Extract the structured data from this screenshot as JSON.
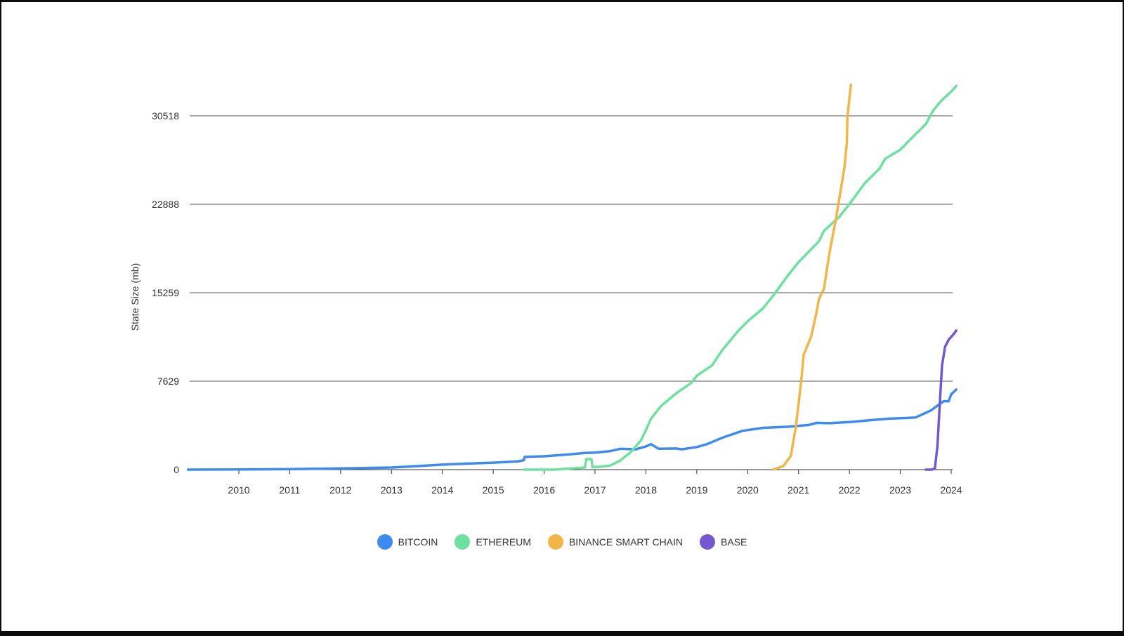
{
  "chart_data": {
    "type": "line",
    "title": "",
    "xlabel": "",
    "ylabel": "State Size (mb)",
    "x_ticks": [
      "2010",
      "2011",
      "2012",
      "2013",
      "2014",
      "2015",
      "2016",
      "2017",
      "2018",
      "2019",
      "2020",
      "2021",
      "2022",
      "2023",
      "2024"
    ],
    "y_ticks": [
      "0",
      "7629",
      "15259",
      "22888",
      "30518"
    ],
    "xlim": [
      2009.0,
      2024.0
    ],
    "ylim": [
      0,
      30518
    ],
    "grid": true,
    "legend_position": "bottom",
    "series": [
      {
        "name": "BITCOIN",
        "color": "#3d8bf0",
        "points": [
          [
            2009.0,
            0
          ],
          [
            2010.0,
            10
          ],
          [
            2011.0,
            40
          ],
          [
            2012.0,
            100
          ],
          [
            2013.0,
            180
          ],
          [
            2013.5,
            300
          ],
          [
            2014.0,
            430
          ],
          [
            2014.5,
            520
          ],
          [
            2015.0,
            600
          ],
          [
            2015.5,
            720
          ],
          [
            2015.6,
            820
          ],
          [
            2015.62,
            1100
          ],
          [
            2016.0,
            1150
          ],
          [
            2016.5,
            1320
          ],
          [
            2016.8,
            1440
          ],
          [
            2017.0,
            1470
          ],
          [
            2017.3,
            1600
          ],
          [
            2017.5,
            1800
          ],
          [
            2017.8,
            1750
          ],
          [
            2018.0,
            2000
          ],
          [
            2018.1,
            2200
          ],
          [
            2018.25,
            1800
          ],
          [
            2018.6,
            1820
          ],
          [
            2018.7,
            1750
          ],
          [
            2019.0,
            1950
          ],
          [
            2019.2,
            2200
          ],
          [
            2019.5,
            2750
          ],
          [
            2019.9,
            3350
          ],
          [
            2020.3,
            3600
          ],
          [
            2020.8,
            3700
          ],
          [
            2021.2,
            3850
          ],
          [
            2021.35,
            4030
          ],
          [
            2021.6,
            4000
          ],
          [
            2022.0,
            4100
          ],
          [
            2022.5,
            4300
          ],
          [
            2022.8,
            4400
          ],
          [
            2023.1,
            4450
          ],
          [
            2023.3,
            4500
          ],
          [
            2023.6,
            5100
          ],
          [
            2023.85,
            5900
          ],
          [
            2023.95,
            5900
          ],
          [
            2024.0,
            6500
          ],
          [
            2024.1,
            6900
          ]
        ]
      },
      {
        "name": "ETHEREUM",
        "color": "#6ee0a0",
        "points": [
          [
            2015.6,
            0
          ],
          [
            2016.2,
            0
          ],
          [
            2016.7,
            150
          ],
          [
            2016.8,
            180
          ],
          [
            2016.83,
            900
          ],
          [
            2016.93,
            900
          ],
          [
            2016.95,
            220
          ],
          [
            2017.1,
            250
          ],
          [
            2017.3,
            350
          ],
          [
            2017.5,
            800
          ],
          [
            2017.7,
            1500
          ],
          [
            2017.9,
            2500
          ],
          [
            2018.0,
            3400
          ],
          [
            2018.1,
            4400
          ],
          [
            2018.3,
            5500
          ],
          [
            2018.6,
            6600
          ],
          [
            2018.9,
            7500
          ],
          [
            2019.0,
            8100
          ],
          [
            2019.3,
            9000
          ],
          [
            2019.5,
            10300
          ],
          [
            2019.8,
            11900
          ],
          [
            2020.0,
            12800
          ],
          [
            2020.3,
            13900
          ],
          [
            2020.5,
            15000
          ],
          [
            2020.8,
            16800
          ],
          [
            2021.0,
            17900
          ],
          [
            2021.4,
            19700
          ],
          [
            2021.5,
            20600
          ],
          [
            2021.8,
            21800
          ],
          [
            2022.0,
            22900
          ],
          [
            2022.3,
            24700
          ],
          [
            2022.6,
            26000
          ],
          [
            2022.7,
            26800
          ],
          [
            2023.0,
            27600
          ],
          [
            2023.2,
            28500
          ],
          [
            2023.5,
            29800
          ],
          [
            2023.65,
            31000
          ],
          [
            2023.8,
            31800
          ],
          [
            2024.0,
            32600
          ],
          [
            2024.1,
            33100
          ]
        ]
      },
      {
        "name": "BINANCE SMART CHAIN",
        "color": "#f2b54a",
        "points": [
          [
            2020.5,
            0
          ],
          [
            2020.7,
            300
          ],
          [
            2020.85,
            1200
          ],
          [
            2020.95,
            3800
          ],
          [
            2021.05,
            7500
          ],
          [
            2021.1,
            9900
          ],
          [
            2021.25,
            11500
          ],
          [
            2021.35,
            13500
          ],
          [
            2021.4,
            14700
          ],
          [
            2021.5,
            15600
          ],
          [
            2021.6,
            18500
          ],
          [
            2021.75,
            22000
          ],
          [
            2021.9,
            26000
          ],
          [
            2021.95,
            28200
          ],
          [
            2021.96,
            30300
          ],
          [
            2022.0,
            32000
          ],
          [
            2022.03,
            33200
          ]
        ]
      },
      {
        "name": "BASE",
        "color": "#7458cf",
        "points": [
          [
            2023.5,
            0
          ],
          [
            2023.62,
            0
          ],
          [
            2023.68,
            100
          ],
          [
            2023.73,
            2000
          ],
          [
            2023.78,
            6000
          ],
          [
            2023.82,
            9000
          ],
          [
            2023.88,
            10600
          ],
          [
            2023.95,
            11200
          ],
          [
            2024.05,
            11700
          ],
          [
            2024.1,
            12000
          ]
        ]
      }
    ]
  }
}
